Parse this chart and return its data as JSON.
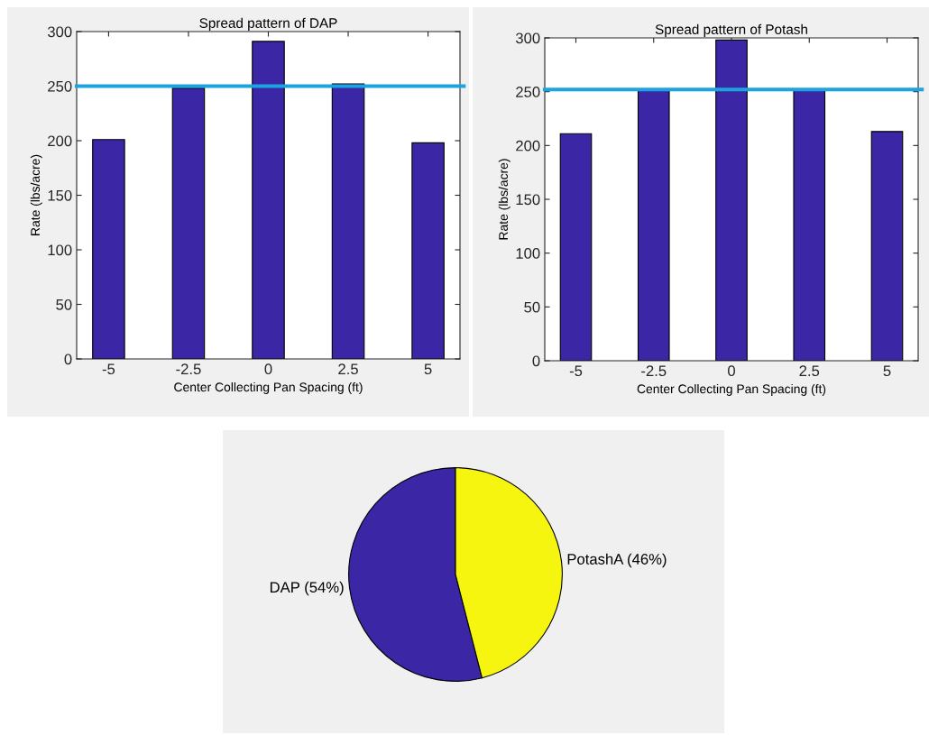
{
  "chart_data": [
    {
      "type": "bar",
      "title": "Spread pattern of DAP",
      "xlabel": "Center Collecting Pan Spacing (ft)",
      "ylabel": "Rate (lbs/acre)",
      "x": [
        -5,
        -2.5,
        0,
        2.5,
        5
      ],
      "xlim": [
        -6,
        6
      ],
      "xticks": [
        -5,
        -2.5,
        0,
        2.5,
        5
      ],
      "values": [
        201,
        248,
        291,
        252,
        198
      ],
      "color": "#3b26a6",
      "ylim": [
        0,
        300
      ],
      "yticks": [
        0,
        50,
        100,
        150,
        200,
        250,
        300
      ],
      "grid": false,
      "ref_lines": [
        {
          "axis": "y",
          "value": 250,
          "color": "#1ba4e0"
        }
      ]
    },
    {
      "type": "bar",
      "title": "Spread pattern of Potash",
      "xlabel": "Center Collecting Pan Spacing (ft)",
      "ylabel": "Rate (lbs/acre)",
      "x": [
        -5,
        -2.5,
        0,
        2.5,
        5
      ],
      "xlim": [
        -6,
        6
      ],
      "xticks": [
        -5,
        -2.5,
        0,
        2.5,
        5
      ],
      "values": [
        211,
        251,
        298,
        251,
        213
      ],
      "color": "#3b26a6",
      "ylim": [
        0,
        300
      ],
      "yticks": [
        0,
        50,
        100,
        150,
        200,
        250,
        300
      ],
      "grid": false,
      "ref_lines": [
        {
          "axis": "y",
          "value": 252,
          "color": "#1ba4e0"
        }
      ]
    },
    {
      "type": "pie",
      "categories": [
        "DAP (54%)",
        "PotashA (46%)"
      ],
      "values": [
        54,
        46
      ],
      "colors": [
        "#3b26a6",
        "#f5f50f"
      ]
    }
  ]
}
